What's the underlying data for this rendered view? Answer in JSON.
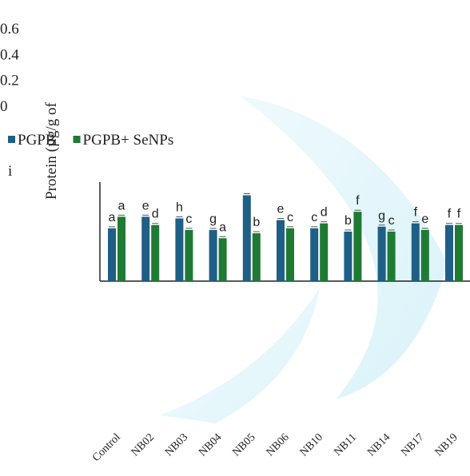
{
  "chart_data": {
    "type": "bar",
    "y_label": "Protein (µg/g of",
    "annotation": "i",
    "categories": [
      "Control",
      "NB02",
      "NB03",
      "NB04",
      "NB05",
      "NB06",
      "NB10",
      "NB11",
      "NB14",
      "NB17",
      "NB19"
    ],
    "series": [
      {
        "name": "PGPB",
        "color": "#1f5f86",
        "values": [
          0.32,
          0.39,
          0.38,
          0.31,
          0.52,
          0.37,
          0.32,
          0.3,
          0.33,
          0.35,
          0.34
        ],
        "letters": [
          "a",
          "e",
          "h",
          "g",
          "",
          "e",
          "c",
          "b",
          "g",
          "f",
          "f"
        ]
      },
      {
        "name": "PGPB+ SeNPs",
        "color": "#1f7a33",
        "values": [
          0.39,
          0.34,
          0.31,
          0.26,
          0.29,
          0.32,
          0.35,
          0.42,
          0.3,
          0.31,
          0.34
        ],
        "letters": [
          "a",
          "d",
          "c",
          "a",
          "b",
          "c",
          "d",
          "f",
          "c",
          "e",
          "f"
        ]
      }
    ],
    "ylim": [
      0,
      0.6
    ],
    "yticks": [
      0,
      0.2,
      0.4,
      0.6
    ],
    "grid": false
  }
}
